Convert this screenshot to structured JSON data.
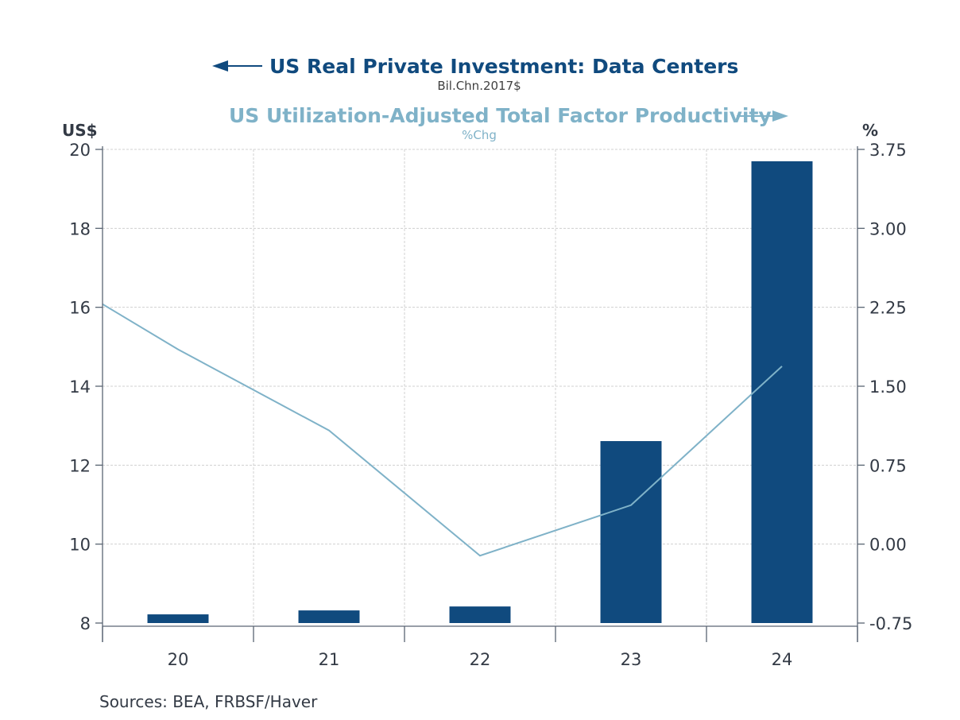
{
  "chart_data": {
    "type": "bar+line",
    "title_left": "US Real Private Investment: Data Centers",
    "subtitle_left": "Bil.Chn.2017$",
    "title_right": "US Utilization-Adjusted Total Factor Productivity",
    "subtitle_right": "%Chg",
    "left_axis_unit": "US$",
    "right_axis_unit": "%",
    "categories": [
      "20",
      "21",
      "22",
      "23",
      "24"
    ],
    "left_axis": {
      "range": [
        8,
        20
      ],
      "ticks": [
        "8",
        "10",
        "12",
        "14",
        "16",
        "18",
        "20"
      ]
    },
    "right_axis": {
      "range": [
        -0.75,
        3.75
      ],
      "ticks": [
        "-0.75",
        "0.00",
        "0.75",
        "1.50",
        "2.25",
        "3.00",
        "3.75"
      ]
    },
    "series": [
      {
        "name": "US Real Private Investment: Data Centers",
        "type": "bar",
        "axis": "left",
        "color": "#104a7e",
        "values": [
          8.22,
          8.32,
          8.42,
          12.61,
          19.7
        ]
      },
      {
        "name": "US Utilization-Adjusted Total Factor Productivity",
        "type": "line",
        "axis": "right",
        "color": "#7fb2c8",
        "x": [
          "start",
          "20",
          "21",
          "22",
          "23",
          "24"
        ],
        "values": [
          2.28,
          1.85,
          1.08,
          -0.11,
          0.37,
          1.69
        ]
      }
    ],
    "grid": true,
    "source": "Sources:  BEA, FRBSF/Haver"
  }
}
